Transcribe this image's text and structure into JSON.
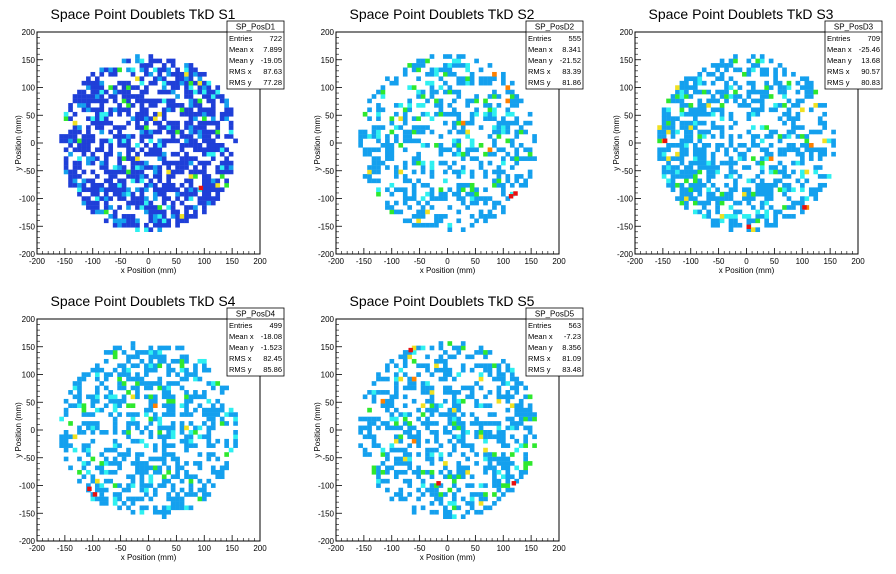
{
  "palette": {
    "low": "#1f3fd8",
    "mid_low": "#14a0ee",
    "cyan": "#2ef0f0",
    "green": "#2ee82e",
    "yellow": "#f0e020",
    "orange": "#ff8000",
    "red": "#e81010"
  },
  "chart_data": [
    {
      "type": "heatmap",
      "title": "Space Point Doublets TkD S1",
      "xlabel": "x Position (mm)",
      "ylabel": "y Position (mm)",
      "xlim": [
        -200,
        200
      ],
      "ylim": [
        -200,
        200
      ],
      "xticks": [
        "-200",
        "-150",
        "-100",
        "-50",
        "0",
        "50",
        "100",
        "150",
        "200"
      ],
      "yticks": [
        "-200",
        "-150",
        "-100",
        "-50",
        "0",
        "50",
        "100",
        "150",
        "200"
      ],
      "data_region_radius": 160,
      "dominant_level": "low",
      "stats": {
        "name": "SP_PosD1",
        "rows": [
          {
            "label": "Entries",
            "value": "722"
          },
          {
            "label": "Mean x",
            "value": "7.899"
          },
          {
            "label": "Mean y",
            "value": "-19.05"
          },
          {
            "label": "RMS x",
            "value": "87.63"
          },
          {
            "label": "RMS y",
            "value": "77.28"
          }
        ]
      }
    },
    {
      "type": "heatmap",
      "title": "Space Point Doublets TkD S2",
      "xlabel": "x Position (mm)",
      "ylabel": "y Position (mm)",
      "xlim": [
        -200,
        200
      ],
      "ylim": [
        -200,
        200
      ],
      "xticks": [
        "-200",
        "-150",
        "-100",
        "-50",
        "0",
        "50",
        "100",
        "150",
        "200"
      ],
      "yticks": [
        "-200",
        "-150",
        "-100",
        "-50",
        "0",
        "50",
        "100",
        "150",
        "200"
      ],
      "data_region_radius": 160,
      "dominant_level": "mid_low",
      "stats": {
        "name": "SP_PosD2",
        "rows": [
          {
            "label": "Entries",
            "value": "555"
          },
          {
            "label": "Mean x",
            "value": "8.341"
          },
          {
            "label": "Mean y",
            "value": "-21.52"
          },
          {
            "label": "RMS x",
            "value": "83.39"
          },
          {
            "label": "RMS y",
            "value": "81.86"
          }
        ]
      }
    },
    {
      "type": "heatmap",
      "title": "Space Point Doublets TkD S3",
      "xlabel": "x Position (mm)",
      "ylabel": "y Position (mm)",
      "xlim": [
        -200,
        200
      ],
      "ylim": [
        -200,
        200
      ],
      "xticks": [
        "-200",
        "-150",
        "-100",
        "-50",
        "0",
        "50",
        "100",
        "150",
        "200"
      ],
      "yticks": [
        "-200",
        "-150",
        "-100",
        "-50",
        "0",
        "50",
        "100",
        "150",
        "200"
      ],
      "data_region_radius": 160,
      "dominant_level": "mid_low",
      "stats": {
        "name": "SP_PosD3",
        "rows": [
          {
            "label": "Entries",
            "value": "709"
          },
          {
            "label": "Mean x",
            "value": "-25.46"
          },
          {
            "label": "Mean y",
            "value": "13.68"
          },
          {
            "label": "RMS x",
            "value": "90.57"
          },
          {
            "label": "RMS y",
            "value": "80.83"
          }
        ]
      }
    },
    {
      "type": "heatmap",
      "title": "Space Point Doublets TkD S4",
      "xlabel": "x Position (mm)",
      "ylabel": "y Position (mm)",
      "xlim": [
        -200,
        200
      ],
      "ylim": [
        -200,
        200
      ],
      "xticks": [
        "-200",
        "-150",
        "-100",
        "-50",
        "0",
        "50",
        "100",
        "150",
        "200"
      ],
      "yticks": [
        "-200",
        "-150",
        "-100",
        "-50",
        "0",
        "50",
        "100",
        "150",
        "200"
      ],
      "data_region_radius": 160,
      "dominant_level": "mid_low",
      "stats": {
        "name": "SP_PosD4",
        "rows": [
          {
            "label": "Entries",
            "value": "499"
          },
          {
            "label": "Mean x",
            "value": "-18.08"
          },
          {
            "label": "Mean y",
            "value": "-1.523"
          },
          {
            "label": "RMS x",
            "value": "82.45"
          },
          {
            "label": "RMS y",
            "value": "85.86"
          }
        ]
      }
    },
    {
      "type": "heatmap",
      "title": "Space Point Doublets TkD S5",
      "xlabel": "x Position (mm)",
      "ylabel": "y Position (mm)",
      "xlim": [
        -200,
        200
      ],
      "ylim": [
        -200,
        200
      ],
      "xticks": [
        "-200",
        "-150",
        "-100",
        "-50",
        "0",
        "50",
        "100",
        "150",
        "200"
      ],
      "yticks": [
        "-200",
        "-150",
        "-100",
        "-50",
        "0",
        "50",
        "100",
        "150",
        "200"
      ],
      "data_region_radius": 160,
      "dominant_level": "mid_low",
      "stats": {
        "name": "SP_PosD5",
        "rows": [
          {
            "label": "Entries",
            "value": "563"
          },
          {
            "label": "Mean x",
            "value": "-7.23"
          },
          {
            "label": "Mean y",
            "value": "8.356"
          },
          {
            "label": "RMS x",
            "value": "81.09"
          },
          {
            "label": "RMS y",
            "value": "83.48"
          }
        ]
      }
    }
  ]
}
